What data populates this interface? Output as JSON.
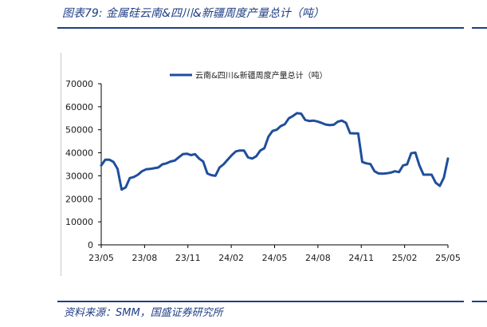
{
  "figure": {
    "title": "图表79: 金属硅云南&四川&新疆周度产量总计（吨）",
    "source": "资料来源：SMM，国盛证券研究所"
  },
  "colors": {
    "line": "#1f4e9c",
    "accent": "#1f3e85"
  },
  "chart_data": {
    "type": "line",
    "title": "",
    "xlabel": "",
    "ylabel": "",
    "ylim": [
      0,
      70000
    ],
    "yticks": [
      0,
      10000,
      20000,
      30000,
      40000,
      50000,
      60000,
      70000
    ],
    "xtick_labels": [
      "23/05",
      "23/08",
      "23/11",
      "24/02",
      "24/05",
      "24/08",
      "24/11",
      "25/02",
      "25/05"
    ],
    "grid": false,
    "legend_position": "top",
    "series": [
      {
        "name": "云南&四川&新疆周度产量总计（吨）",
        "values": [
          34500,
          37000,
          37000,
          36000,
          33000,
          24000,
          25000,
          29000,
          29500,
          30500,
          32000,
          32800,
          33000,
          33300,
          33600,
          35000,
          35400,
          36200,
          36600,
          38000,
          39400,
          39600,
          39000,
          39400,
          37500,
          36200,
          31000,
          30300,
          30000,
          33600,
          35000,
          37000,
          39000,
          40600,
          41000,
          41000,
          38000,
          37500,
          38500,
          41000,
          42000,
          47000,
          49500,
          50000,
          51600,
          52400,
          55000,
          56000,
          57200,
          57000,
          54300,
          53800,
          54000,
          53600,
          53000,
          52300,
          52000,
          52200,
          53500,
          54000,
          53000,
          48500,
          48400,
          48400,
          36000,
          35400,
          35100,
          32000,
          31000,
          30900,
          31100,
          31400,
          32000,
          31600,
          34500,
          35000,
          39800,
          40100,
          34500,
          30500,
          30500,
          30500,
          27000,
          25600,
          29200,
          37500
        ]
      }
    ]
  }
}
